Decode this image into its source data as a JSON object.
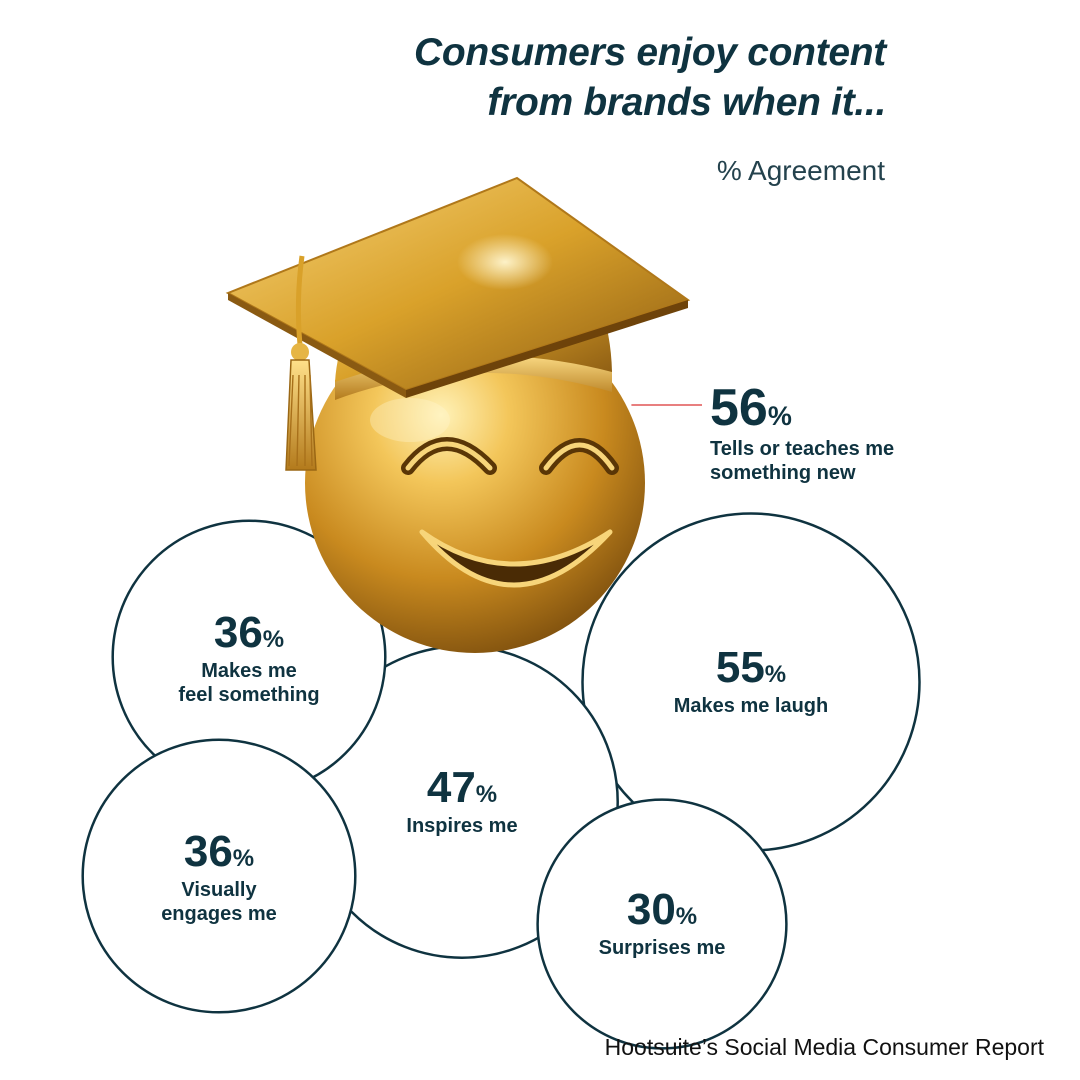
{
  "title_line1": "Consumers enjoy content",
  "title_line2": "from brands when it...",
  "subtitle": "% Agreement",
  "source": "Hootsuite’s Social Media Consumer Report",
  "colors": {
    "ink": "#0f3340",
    "circle_stroke": "#0f3340",
    "callout_line": "#e05555",
    "gold_light": "#ffe08a",
    "gold_mid": "#d9a12a",
    "gold_dark": "#7a4d0c"
  },
  "icon": "graduation-cap-smiley-icon",
  "chart_data": {
    "type": "bubble",
    "title": "Consumers enjoy content from brands when it...",
    "unit": "%",
    "value_label": "% Agreement",
    "items": [
      {
        "label": "Tells or teaches me something new",
        "lines": [
          "Tells or teaches me",
          "something new"
        ],
        "value": 56
      },
      {
        "label": "Makes me laugh",
        "lines": [
          "Makes me laugh"
        ],
        "value": 55
      },
      {
        "label": "Inspires me",
        "lines": [
          "Inspires me"
        ],
        "value": 47
      },
      {
        "label": "Makes me feel something",
        "lines": [
          "Makes me",
          "feel something"
        ],
        "value": 36
      },
      {
        "label": "Visually engages me",
        "lines": [
          "Visually",
          "engages me"
        ],
        "value": 36
      },
      {
        "label": "Surprises me",
        "lines": [
          "Surprises me"
        ],
        "value": 30
      }
    ]
  }
}
